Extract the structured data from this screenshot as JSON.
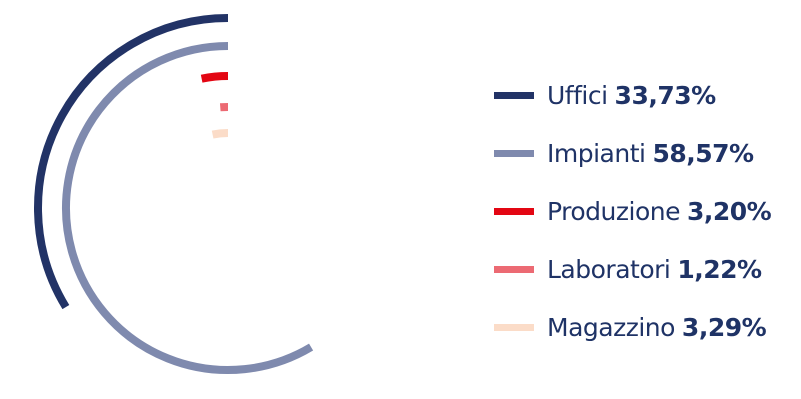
{
  "chart_data": {
    "type": "radial-bar",
    "unit": "%",
    "series": [
      {
        "name": "Uffici",
        "value": 33.73,
        "label": "33,73%",
        "color": "#223366"
      },
      {
        "name": "Impianti",
        "value": 58.57,
        "label": "58,57%",
        "color": "#7f8aae"
      },
      {
        "name": "Produzione",
        "value": 3.2,
        "label": "3,20%",
        "color": "#e30613"
      },
      {
        "name": "Laboratori",
        "value": 1.22,
        "label": "1,22%",
        "color": "#ec6a73"
      },
      {
        "name": "Magazzino",
        "value": 3.29,
        "label": "3,29%",
        "color": "#fbdcc8"
      }
    ],
    "legend_position": "right",
    "direction": "counter-clockwise from top"
  }
}
